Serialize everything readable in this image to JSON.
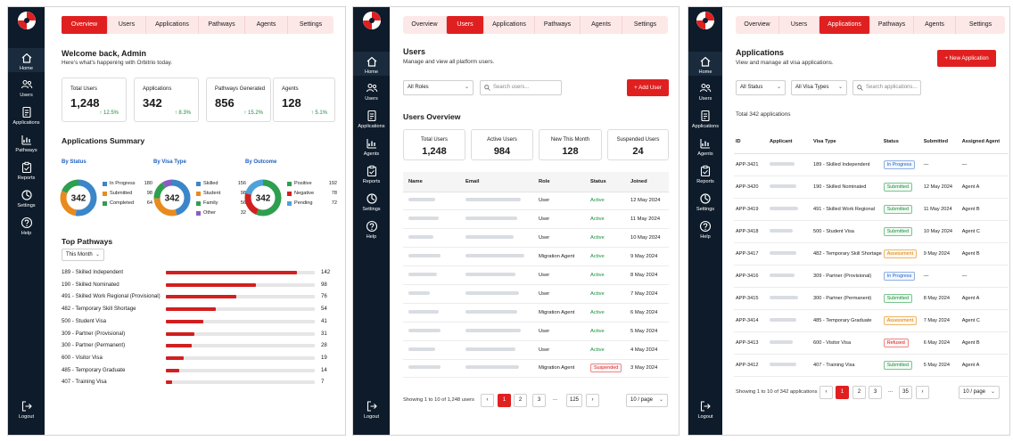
{
  "nav_labels": {
    "home": "Home",
    "users": "Users",
    "applications": "Applications",
    "pathways": "Pathways",
    "agents": "Agents",
    "reports": "Reports",
    "settings": "Settings",
    "help": "Help",
    "logout": "Logout"
  },
  "tabs": [
    "Overview",
    "Users",
    "Applications",
    "Pathways",
    "Agents",
    "Settings"
  ],
  "colors": {
    "accent": "#e02020",
    "sidebar": "#0d1b2a",
    "positive": "#1a8f3c",
    "link": "#1f5fbf"
  },
  "overview": {
    "welcome": "Welcome back, Admin",
    "subtitle": "Here's what's happening with Orbitrio today.",
    "stats": [
      {
        "label": "Total Users",
        "value": "1,248",
        "delta": "12.5%"
      },
      {
        "label": "Applications",
        "value": "342",
        "delta": "8.3%"
      },
      {
        "label": "Pathways Generated",
        "value": "856",
        "delta": "15.2%"
      },
      {
        "label": "Agents",
        "value": "128",
        "delta": "5.1%"
      }
    ],
    "summary_title": "Applications Summary",
    "groups": [
      {
        "title": "By Status",
        "total": "342",
        "items": [
          {
            "name": "In Progress",
            "value": 180,
            "color": "#3b86c8"
          },
          {
            "name": "Submitted",
            "value": 98,
            "color": "#e98a1e"
          },
          {
            "name": "Completed",
            "value": 64,
            "color": "#2e9e4f"
          }
        ]
      },
      {
        "title": "By Visa Type",
        "total": "342",
        "items": [
          {
            "name": "Skilled",
            "value": 156,
            "color": "#3b86c8"
          },
          {
            "name": "Student",
            "value": 98,
            "color": "#e98a1e"
          },
          {
            "name": "Family",
            "value": 56,
            "color": "#2e9e4f"
          },
          {
            "name": "Other",
            "value": 32,
            "color": "#8a5cc2"
          }
        ]
      },
      {
        "title": "By Outcome",
        "total": "342",
        "items": [
          {
            "name": "Positive",
            "value": 192,
            "color": "#2e9e4f"
          },
          {
            "name": "Negative",
            "value": 78,
            "color": "#d21f1f"
          },
          {
            "name": "Pending",
            "value": 72,
            "color": "#4da3d9"
          }
        ]
      }
    ],
    "pathways_title": "Top Pathways",
    "period": "This Month",
    "pathways": [
      {
        "label": "189 - Skilled Independent",
        "value": 142
      },
      {
        "label": "190 - Skilled Nominated",
        "value": 98
      },
      {
        "label": "491 - Skilled Work Regional (Provisional)",
        "value": 76
      },
      {
        "label": "482 - Temporary Skill Shortage",
        "value": 54
      },
      {
        "label": "500 - Student Visa",
        "value": 41
      },
      {
        "label": "309 - Partner (Provisional)",
        "value": 31
      },
      {
        "label": "300 - Partner (Permanent)",
        "value": 28
      },
      {
        "label": "600 - Visitor Visa",
        "value": 19
      },
      {
        "label": "485 - Temporary Graduate",
        "value": 14
      },
      {
        "label": "407 - Training Visa",
        "value": 7
      }
    ]
  },
  "users": {
    "title": "Users",
    "subtitle": "Manage and view all platform users.",
    "filter": "All Roles",
    "search_placeholder": "Search users...",
    "add_button": "Add User",
    "overview_title": "Users Overview",
    "stats": [
      {
        "label": "Total Users",
        "value": "1,248"
      },
      {
        "label": "Active Users",
        "value": "984"
      },
      {
        "label": "New This Month",
        "value": "128"
      },
      {
        "label": "Suspended Users",
        "value": "24"
      }
    ],
    "columns": [
      "Name",
      "Email",
      "Role",
      "Status",
      "Joined"
    ],
    "rows": [
      {
        "role": "User",
        "status": "Active",
        "joined": "12 May 2024"
      },
      {
        "role": "User",
        "status": "Active",
        "joined": "11 May 2024"
      },
      {
        "role": "User",
        "status": "Active",
        "joined": "10 May 2024"
      },
      {
        "role": "Migration Agent",
        "status": "Active",
        "joined": "9 May 2024"
      },
      {
        "role": "User",
        "status": "Active",
        "joined": "8 May 2024"
      },
      {
        "role": "User",
        "status": "Active",
        "joined": "7 May 2024"
      },
      {
        "role": "Migration Agent",
        "status": "Active",
        "joined": "6 May 2024"
      },
      {
        "role": "User",
        "status": "Active",
        "joined": "5 May 2024"
      },
      {
        "role": "User",
        "status": "Active",
        "joined": "4 May 2024"
      },
      {
        "role": "Migration Agent",
        "status": "Suspended",
        "joined": "3 May 2024"
      }
    ],
    "showing": "Showing 1 to 10 of 1,248 users",
    "pages": [
      "1",
      "2",
      "3",
      "...",
      "125"
    ],
    "per_page": "10 / page"
  },
  "applications": {
    "title": "Applications",
    "subtitle": "View and manage all visa applications.",
    "new_button": "New Application",
    "status_filter": "All Status",
    "visa_filter": "All Visa Types",
    "search_placeholder": "Search applications...",
    "total_label": "Total 342 applications",
    "columns": [
      "ID",
      "Applicant",
      "Visa Type",
      "Status",
      "Submitted",
      "Assigned Agent"
    ],
    "rows": [
      {
        "id": "APP-3421",
        "visa": "189 - Skilled Independent",
        "status": "In Progress",
        "submitted": "—",
        "agent": "—"
      },
      {
        "id": "APP-3420",
        "visa": "190 - Skilled Nominated",
        "status": "Submitted",
        "submitted": "12 May 2024",
        "agent": "Agent A"
      },
      {
        "id": "APP-3419",
        "visa": "491 - Skilled Work Regional",
        "status": "Submitted",
        "submitted": "11 May 2024",
        "agent": "Agent B"
      },
      {
        "id": "APP-3418",
        "visa": "500 - Student Visa",
        "status": "Submitted",
        "submitted": "10 May 2024",
        "agent": "Agent C"
      },
      {
        "id": "APP-3417",
        "visa": "482 - Temporary Skill Shortage",
        "status": "Assessment",
        "submitted": "9 May 2024",
        "agent": "Agent B"
      },
      {
        "id": "APP-3416",
        "visa": "309 - Partner (Provisional)",
        "status": "In Progress",
        "submitted": "—",
        "agent": "—"
      },
      {
        "id": "APP-3415",
        "visa": "300 - Partner (Permanent)",
        "status": "Submitted",
        "submitted": "8 May 2024",
        "agent": "Agent A"
      },
      {
        "id": "APP-3414",
        "visa": "485 - Temporary Graduate",
        "status": "Assessment",
        "submitted": "7 May 2024",
        "agent": "Agent C"
      },
      {
        "id": "APP-3413",
        "visa": "600 - Visitor Visa",
        "status": "Refused",
        "submitted": "6 May 2024",
        "agent": "Agent B"
      },
      {
        "id": "APP-3412",
        "visa": "407 - Training Visa",
        "status": "Submitted",
        "submitted": "5 May 2024",
        "agent": "Agent A"
      }
    ],
    "showing": "Showing 1 to 10 of 342 applications",
    "pages": [
      "1",
      "2",
      "3",
      "...",
      "35"
    ],
    "per_page": "10 / page"
  }
}
